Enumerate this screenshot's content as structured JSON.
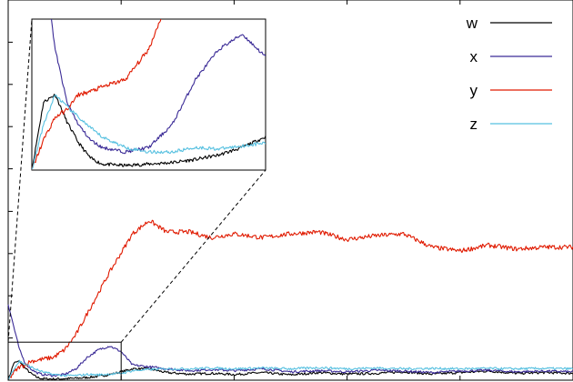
{
  "chart_data": {
    "type": "line",
    "title": "",
    "xlabel": "",
    "ylabel": "",
    "xlim": [
      0,
      1000
    ],
    "ylim": [
      0,
      1
    ],
    "grid": false,
    "legend_position": "top-right",
    "x": [
      0,
      10,
      20,
      30,
      40,
      50,
      60,
      80,
      100,
      120,
      140,
      160,
      180,
      200,
      220,
      250,
      280,
      320,
      360,
      400,
      450,
      500,
      550,
      600,
      650,
      700,
      750,
      800,
      850,
      900,
      950,
      1000
    ],
    "series": [
      {
        "name": "w",
        "color": "#000000",
        "values": [
          0.0,
          0.045,
          0.05,
          0.032,
          0.018,
          0.008,
          0.004,
          0.003,
          0.004,
          0.005,
          0.007,
          0.01,
          0.015,
          0.022,
          0.03,
          0.03,
          0.02,
          0.016,
          0.018,
          0.015,
          0.02,
          0.014,
          0.02,
          0.016,
          0.018,
          0.022,
          0.016,
          0.02,
          0.024,
          0.018,
          0.02,
          0.018
        ]
      },
      {
        "name": "x",
        "color": "#3a2a96",
        "values": [
          0.2,
          0.14,
          0.08,
          0.045,
          0.03,
          0.02,
          0.015,
          0.012,
          0.015,
          0.03,
          0.06,
          0.08,
          0.09,
          0.075,
          0.04,
          0.035,
          0.03,
          0.025,
          0.028,
          0.025,
          0.03,
          0.022,
          0.025,
          0.022,
          0.026,
          0.024,
          0.02,
          0.024,
          0.026,
          0.022,
          0.024,
          0.022
        ]
      },
      {
        "name": "y",
        "color": "#e01a00",
        "values": [
          0.0,
          0.02,
          0.035,
          0.04,
          0.05,
          0.052,
          0.055,
          0.06,
          0.08,
          0.12,
          0.175,
          0.23,
          0.285,
          0.335,
          0.385,
          0.42,
          0.39,
          0.39,
          0.375,
          0.385,
          0.375,
          0.385,
          0.39,
          0.37,
          0.38,
          0.385,
          0.35,
          0.34,
          0.355,
          0.345,
          0.35,
          0.35
        ]
      },
      {
        "name": "z",
        "color": "#56c0e0",
        "values": [
          0.0,
          0.03,
          0.05,
          0.042,
          0.035,
          0.028,
          0.022,
          0.015,
          0.012,
          0.012,
          0.015,
          0.014,
          0.016,
          0.018,
          0.025,
          0.028,
          0.03,
          0.03,
          0.032,
          0.03,
          0.032,
          0.03,
          0.033,
          0.03,
          0.032,
          0.03,
          0.031,
          0.03,
          0.031,
          0.03,
          0.031,
          0.03
        ]
      }
    ],
    "inset": {
      "zoom_xlim": [
        0,
        200
      ],
      "zoom_ylim": [
        0,
        0.1
      ]
    }
  }
}
